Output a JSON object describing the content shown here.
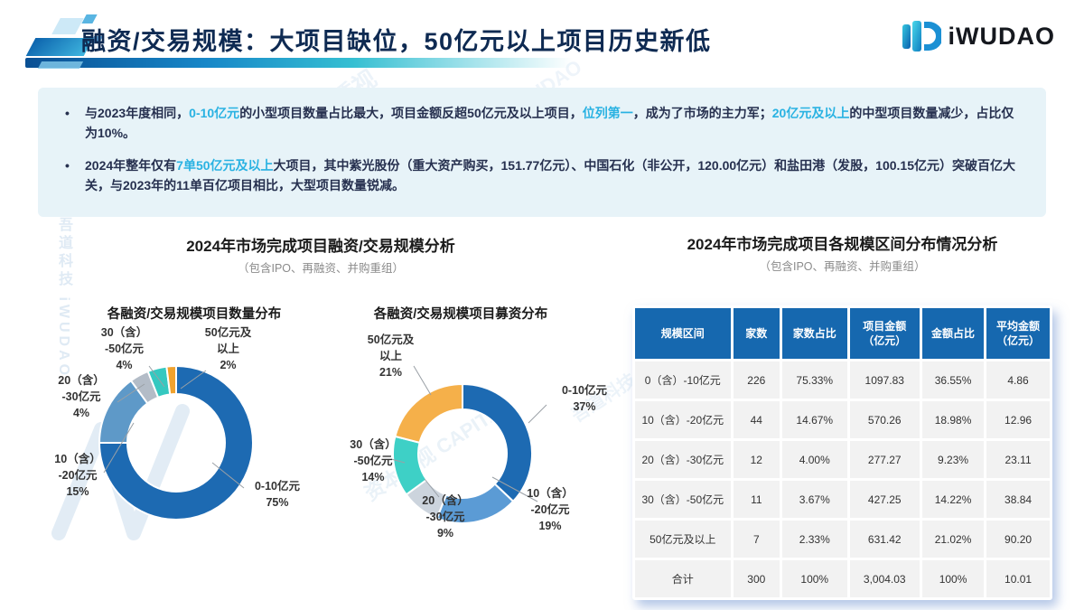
{
  "header": {
    "title": "融资/交易规模：大项目缺位，50亿元以上项目历史新低",
    "logo_text": "iWUDAO"
  },
  "summary": {
    "bullet_char": "•",
    "bullets": [
      {
        "segments": [
          {
            "t": "与2023年度相同，",
            "hl": false
          },
          {
            "t": "0-10亿元",
            "hl": true
          },
          {
            "t": "的小型项目数量占比最大，项目金额反超50亿元及以上项目，",
            "hl": false
          },
          {
            "t": "位列第一",
            "hl": true
          },
          {
            "t": "，成为了市场的主力军；",
            "hl": false
          },
          {
            "t": "20亿元及以上",
            "hl": true
          },
          {
            "t": "的中型项目数量减少，占比仅为10%。",
            "hl": false
          }
        ]
      },
      {
        "segments": [
          {
            "t": "2024年整年仅有",
            "hl": false
          },
          {
            "t": "7单50亿元及以上",
            "hl": true
          },
          {
            "t": "大项目，其中紫光股份（重大资产购买，151.77亿元）、中国石化（非公开，120.00亿元）和盐田港（发股，100.15亿元）突破百亿大关，与2023年的11单百亿项目相比，大型项目数量锐减。",
            "hl": false
          }
        ]
      }
    ]
  },
  "left_section": {
    "title": "2024年市场完成项目融资/交易规模分析",
    "subtitle": "（包含IPO、再融资、并购重组）"
  },
  "right_section": {
    "title": "2024年市场完成项目各规模区间分布情况分析",
    "subtitle": "（包含IPO、再融资、并购重组）"
  },
  "chart_data": [
    {
      "type": "pie",
      "donut": true,
      "title": "各融资/交易规模项目数量分布",
      "categories": [
        "0-10亿元",
        "10（含）-20亿元",
        "20（含）-30亿元",
        "30（含）-50亿元",
        "50亿元及以上"
      ],
      "values": [
        75,
        15,
        4,
        4,
        2
      ],
      "unit": "%",
      "colors": [
        "#1d6ab2",
        "#5e99c8",
        "#b3bcc7",
        "#35c8c0",
        "#f0a22e"
      ],
      "label_lines": [
        [
          "0-10亿元"
        ],
        [
          "10（含）",
          "-20亿元"
        ],
        [
          "20（含）",
          "-30亿元"
        ],
        [
          "30（含）",
          "-50亿元"
        ],
        [
          "50亿元及",
          "以上"
        ]
      ],
      "legend_position": "outside-labels",
      "start_angle_deg": 0
    },
    {
      "type": "pie",
      "donut": true,
      "title": "各融资/交易规模项目募资分布",
      "categories": [
        "0-10亿元",
        "10（含）-20亿元",
        "20（含）-30亿元",
        "30（含）-50亿元",
        "50亿元及以上"
      ],
      "values": [
        37,
        19,
        9,
        14,
        21
      ],
      "unit": "%",
      "colors": [
        "#1d6ab2",
        "#5b9bd5",
        "#ccd4dd",
        "#3ed0c6",
        "#f5b04a"
      ],
      "label_lines": [
        [
          "0-10亿元"
        ],
        [
          "10（含）",
          "-20亿元"
        ],
        [
          "20（含）",
          "-30亿元"
        ],
        [
          "30（含）",
          "-50亿元"
        ],
        [
          "50亿元及",
          "以上"
        ]
      ],
      "legend_position": "outside-labels",
      "start_angle_deg": 0
    },
    {
      "type": "table",
      "headers": [
        "规模区间",
        "家数",
        "家数占比",
        "项目金额\n（亿元）",
        "金额占比",
        "平均金额\n（亿元）"
      ],
      "rows": [
        [
          "0（含）-10亿元",
          "226",
          "75.33%",
          "1097.83",
          "36.55%",
          "4.86"
        ],
        [
          "10（含）-20亿元",
          "44",
          "14.67%",
          "570.26",
          "18.98%",
          "12.96"
        ],
        [
          "20（含）-30亿元",
          "12",
          "4.00%",
          "277.27",
          "9.23%",
          "23.11"
        ],
        [
          "30（含）-50亿元",
          "11",
          "3.67%",
          "427.25",
          "14.22%",
          "38.84"
        ],
        [
          "50亿元及以上",
          "7",
          "2.33%",
          "631.42",
          "21.02%",
          "90.20"
        ],
        [
          "合计",
          "300",
          "100%",
          "3,004.03",
          "100%",
          "10.01"
        ]
      ]
    }
  ],
  "colors": {
    "accent_cyan": "#29b2e2",
    "title_navy": "#0e2a52",
    "summary_bg": "#e7f3f8",
    "table_header_bg": "#1668af",
    "table_row_bg": "#f2f2f2"
  },
  "watermarks": {
    "brand_full": "吾道科技 iWUDAO",
    "tagline_full": "iWudao 资本透视",
    "capital_full": "资本透视 CAPITAL"
  }
}
